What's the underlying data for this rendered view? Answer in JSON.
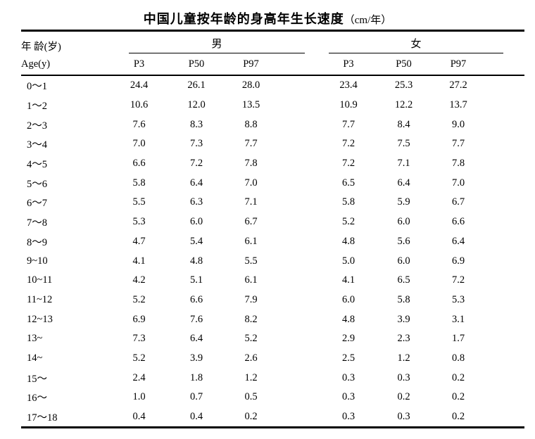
{
  "title": {
    "main": "中国儿童按年龄的身高年生长速度",
    "unit": "（cm/年）"
  },
  "header": {
    "age_label_cn": "年 龄(岁)",
    "age_label_en": "Age(y)",
    "male_label": "男",
    "female_label": "女",
    "male_percentiles": [
      "P3",
      "P50",
      "P97"
    ],
    "female_percentiles": [
      "P3",
      "P50",
      "P97"
    ]
  },
  "colors": {
    "text": "#000000",
    "background": "#ffffff",
    "rule": "#000000"
  },
  "rows": [
    {
      "age": "0～1",
      "male": [
        "24.4",
        "26.1",
        "28.0"
      ],
      "female": [
        "23.4",
        "25.3",
        "27.2"
      ]
    },
    {
      "age": "1～2",
      "male": [
        "10.6",
        "12.0",
        "13.5"
      ],
      "female": [
        "10.9",
        "12.2",
        "13.7"
      ]
    },
    {
      "age": "2～3",
      "male": [
        "7.6",
        "8.3",
        "8.8"
      ],
      "female": [
        "7.7",
        "8.4",
        "9.0"
      ]
    },
    {
      "age": "3～4",
      "male": [
        "7.0",
        "7.3",
        "7.7"
      ],
      "female": [
        "7.2",
        "7.5",
        "7.7"
      ]
    },
    {
      "age": "4～5",
      "male": [
        "6.6",
        "7.2",
        "7.8"
      ],
      "female": [
        "7.2",
        "7.1",
        "7.8"
      ]
    },
    {
      "age": "5～6",
      "male": [
        "5.8",
        "6.4",
        "7.0"
      ],
      "female": [
        "6.5",
        "6.4",
        "7.0"
      ]
    },
    {
      "age": "6～7",
      "male": [
        "5.5",
        "6.3",
        "7.1"
      ],
      "female": [
        "5.8",
        "5.9",
        "6.7"
      ]
    },
    {
      "age": "7～8",
      "male": [
        "5.3",
        "6.0",
        "6.7"
      ],
      "female": [
        "5.2",
        "6.0",
        "6.6"
      ]
    },
    {
      "age": "8～9",
      "male": [
        "4.7",
        "5.4",
        "6.1"
      ],
      "female": [
        "4.8",
        "5.6",
        "6.4"
      ]
    },
    {
      "age": "9~10",
      "male": [
        "4.1",
        "4.8",
        "5.5"
      ],
      "female": [
        "5.0",
        "6.0",
        "6.9"
      ]
    },
    {
      "age": "10~11",
      "male": [
        "4.2",
        "5.1",
        "6.1"
      ],
      "female": [
        "4.1",
        "6.5",
        "7.2"
      ]
    },
    {
      "age": "11~12",
      "male": [
        "5.2",
        "6.6",
        "7.9"
      ],
      "female": [
        "6.0",
        "5.8",
        "5.3"
      ]
    },
    {
      "age": "12~13",
      "male": [
        "6.9",
        "7.6",
        "8.2"
      ],
      "female": [
        "4.8",
        "3.9",
        "3.1"
      ]
    },
    {
      "age": "13~",
      "male": [
        "7.3",
        "6.4",
        "5.2"
      ],
      "female": [
        "2.9",
        "2.3",
        "1.7"
      ]
    },
    {
      "age": "14~",
      "male": [
        "5.2",
        "3.9",
        "2.6"
      ],
      "female": [
        "2.5",
        "1.2",
        "0.8"
      ]
    },
    {
      "age": "15～",
      "male": [
        "2.4",
        "1.8",
        "1.2"
      ],
      "female": [
        "0.3",
        "0.3",
        "0.2"
      ]
    },
    {
      "age": "16～",
      "male": [
        "1.0",
        "0.7",
        "0.5"
      ],
      "female": [
        "0.3",
        "0.2",
        "0.2"
      ]
    },
    {
      "age": "17～18",
      "male": [
        "0.4",
        "0.4",
        "0.2"
      ],
      "female": [
        "0.3",
        "0.3",
        "0.2"
      ]
    }
  ]
}
